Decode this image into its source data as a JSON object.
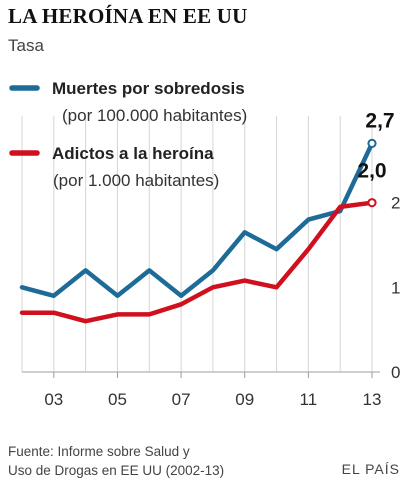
{
  "header": {
    "title": "LA HEROÍNA EN EE UU",
    "subtitle": "Tasa"
  },
  "footer": {
    "source_line1": "Fuente: Informe sobre Salud y",
    "source_line2": "Uso de Drogas en EE UU (2002-13)",
    "brand": "EL PAÍS"
  },
  "chart_data": {
    "type": "line",
    "title": "LA HEROÍNA EN EE UU",
    "subtitle": "Tasa",
    "x": [
      2002,
      2003,
      2004,
      2005,
      2006,
      2007,
      2008,
      2009,
      2010,
      2011,
      2012,
      2013
    ],
    "x_tick_values": [
      2003,
      2005,
      2007,
      2009,
      2011,
      2013
    ],
    "x_tick_labels": [
      "03",
      "05",
      "07",
      "09",
      "11",
      "13"
    ],
    "ylim": [
      0,
      3
    ],
    "y_ticks": [
      0,
      1,
      2
    ],
    "y_axis_side": "right",
    "grid": {
      "x": true,
      "y": false
    },
    "legend_placement": "top-left",
    "series": [
      {
        "name": "Muertes por sobredosis",
        "unit": "(por 100.000 habitantes)",
        "color": "#1d6b96",
        "values": [
          1.0,
          0.9,
          1.2,
          0.9,
          1.2,
          0.9,
          1.2,
          1.65,
          1.45,
          1.8,
          1.9,
          2.7
        ],
        "end_label": "2,7"
      },
      {
        "name": "Adictos a la heroína",
        "unit": "(por 1.000 habitantes)",
        "color": "#d0101e",
        "values": [
          0.7,
          0.7,
          0.6,
          0.68,
          0.68,
          0.8,
          1.0,
          1.08,
          1.0,
          1.45,
          1.95,
          2.0
        ],
        "end_label": "2,0"
      }
    ]
  }
}
